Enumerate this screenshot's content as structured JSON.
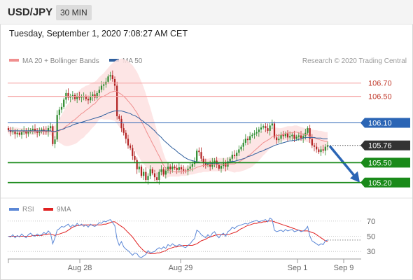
{
  "header": {
    "pair": "USD/JPY",
    "timeframe": "30 MIN"
  },
  "datetime": "Tuesday, September 1, 2020 7:08:27 AM CET",
  "legend": {
    "ma20": "MA 20 + Bollinger Bands",
    "ma50": "MA 50",
    "credit": "Research © 2020 Trading Central",
    "rsi": "RSI",
    "ma9": "9MA"
  },
  "colors": {
    "ma20": "#f08f8f",
    "ma50": "#2f5f9e",
    "band": "#fde0e0",
    "candle_up": "#2e8b2e",
    "candle_down": "#b22222",
    "resistance": "#f5a3a3",
    "pivot": "#2b65b5",
    "support": "#1a8a1a",
    "current": "#333333",
    "rsi": "#5b87d6",
    "rsi_ma": "#e02020"
  },
  "chart_data": [
    {
      "type": "candlestick",
      "title": "USD/JPY",
      "x_labels": [
        "Aug 28",
        "Aug 29",
        "Sep 1",
        "Sep 9"
      ],
      "ylim": [
        105.05,
        106.95
      ],
      "levels": [
        {
          "value": 106.7,
          "label": "106.70",
          "kind": "resistance"
        },
        {
          "value": 106.5,
          "label": "106.50",
          "kind": "resistance"
        },
        {
          "value": 106.1,
          "label": "106.10",
          "kind": "pivot"
        },
        {
          "value": 105.76,
          "label": "105.76",
          "kind": "current"
        },
        {
          "value": 105.5,
          "label": "105.50",
          "kind": "support"
        },
        {
          "value": 105.2,
          "label": "105.20",
          "kind": "support"
        }
      ],
      "close": [
        105.99,
        105.96,
        105.97,
        105.93,
        105.95,
        105.92,
        105.96,
        105.98,
        105.94,
        105.97,
        105.99,
        106.01,
        105.98,
        105.95,
        105.97,
        106.0,
        105.98,
        105.96,
        106.02,
        106.05,
        105.78,
        105.85,
        106.22,
        106.3,
        106.34,
        106.45,
        106.55,
        106.48,
        106.5,
        106.52,
        106.46,
        106.5,
        106.48,
        106.49,
        106.5,
        106.46,
        106.44,
        106.5,
        106.53,
        106.48,
        106.55,
        106.6,
        106.66,
        106.68,
        106.72,
        106.8,
        106.82,
        106.76,
        106.66,
        106.2,
        106.16,
        106.02,
        105.95,
        105.86,
        105.76,
        105.72,
        105.6,
        105.54,
        105.4,
        105.44,
        105.3,
        105.36,
        105.24,
        105.3,
        105.4,
        105.34,
        105.28,
        105.24,
        105.36,
        105.4,
        105.32,
        105.38,
        105.44,
        105.4,
        105.44,
        105.42,
        105.39,
        105.43,
        105.4,
        105.38,
        105.37,
        105.41,
        105.44,
        105.48,
        105.52,
        105.68,
        105.66,
        105.56,
        105.5,
        105.46,
        105.48,
        105.44,
        105.5,
        105.53,
        105.47,
        105.41,
        105.45,
        105.5,
        105.44,
        105.52,
        105.56,
        105.62,
        105.6,
        105.65,
        105.7,
        105.74,
        105.8,
        105.86,
        105.84,
        105.9,
        105.92,
        105.94,
        105.96,
        106.0,
        106.03,
        106.05,
        106.02,
        105.98,
        106.06,
        106.09,
        105.88,
        105.84,
        105.86,
        105.92,
        105.9,
        105.94,
        105.88,
        105.9,
        105.92,
        105.86,
        105.89,
        105.91,
        105.87,
        105.9,
        105.95,
        106.02,
        105.86,
        105.76,
        105.74,
        105.7,
        105.66,
        105.7,
        105.68,
        105.74,
        105.76
      ],
      "ma20": [
        105.98,
        105.98,
        105.98,
        105.98,
        105.98,
        105.97,
        105.97,
        105.97,
        105.97,
        105.97,
        105.97,
        105.97,
        105.97,
        105.97,
        105.97,
        105.97,
        105.97,
        105.97,
        105.97,
        105.97,
        105.96,
        105.96,
        105.97,
        105.98,
        106.0,
        106.02,
        106.05,
        106.07,
        106.1,
        106.13,
        106.15,
        106.18,
        106.21,
        106.24,
        106.26,
        106.29,
        106.31,
        106.34,
        106.37,
        106.39,
        106.43,
        106.47,
        106.49,
        106.5,
        106.52,
        106.54,
        106.56,
        106.57,
        106.58,
        106.57,
        106.55,
        106.53,
        106.5,
        106.47,
        106.43,
        106.39,
        106.35,
        106.3,
        106.25,
        106.19,
        106.12,
        106.06,
        105.99,
        105.92,
        105.86,
        105.79,
        105.73,
        105.66,
        105.6,
        105.53,
        105.46,
        105.41,
        105.39,
        105.38,
        105.37,
        105.36,
        105.36,
        105.36,
        105.37,
        105.37,
        105.37,
        105.38,
        105.39,
        105.4,
        105.41,
        105.43,
        105.44,
        105.45,
        105.46,
        105.46,
        105.46,
        105.47,
        105.47,
        105.47,
        105.47,
        105.47,
        105.47,
        105.47,
        105.47,
        105.48,
        105.48,
        105.48,
        105.48,
        105.5,
        105.51,
        105.53,
        105.55,
        105.57,
        105.6,
        105.62,
        105.65,
        105.68,
        105.71,
        105.74,
        105.77,
        105.8,
        105.82,
        105.84,
        105.86,
        105.89,
        105.9,
        105.91,
        105.91,
        105.92,
        105.93,
        105.94,
        105.95,
        105.95,
        105.95,
        105.96,
        105.96,
        105.95,
        105.94,
        105.93,
        105.92,
        105.92,
        105.9,
        105.88,
        105.87,
        105.86,
        105.85,
        105.84,
        105.83,
        105.82,
        105.82
      ],
      "ma50": [
        105.98,
        105.98,
        105.98,
        105.98,
        105.98,
        105.98,
        105.98,
        105.98,
        105.98,
        105.98,
        105.98,
        105.98,
        105.98,
        105.98,
        105.98,
        105.98,
        105.98,
        105.98,
        105.98,
        105.98,
        105.97,
        105.97,
        105.98,
        105.99,
        106.0,
        106.01,
        106.03,
        106.04,
        106.05,
        106.07,
        106.08,
        106.09,
        106.1,
        106.11,
        106.12,
        106.13,
        106.14,
        106.15,
        106.16,
        106.17,
        106.18,
        106.19,
        106.2,
        106.22,
        106.23,
        106.25,
        106.26,
        106.27,
        106.28,
        106.28,
        106.28,
        106.28,
        106.27,
        106.26,
        106.25,
        106.24,
        106.22,
        106.21,
        106.19,
        106.17,
        106.14,
        106.12,
        106.09,
        106.07,
        106.04,
        106.01,
        105.98,
        105.94,
        105.91,
        105.88,
        105.84,
        105.81,
        105.78,
        105.75,
        105.72,
        105.7,
        105.67,
        105.64,
        105.62,
        105.59,
        105.57,
        105.55,
        105.54,
        105.53,
        105.52,
        105.51,
        105.51,
        105.5,
        105.5,
        105.49,
        105.49,
        105.49,
        105.49,
        105.49,
        105.49,
        105.49,
        105.5,
        105.5,
        105.5,
        105.51,
        105.51,
        105.52,
        105.52,
        105.53,
        105.54,
        105.55,
        105.56,
        105.57,
        105.59,
        105.6,
        105.61,
        105.63,
        105.64,
        105.66,
        105.67,
        105.68,
        105.7,
        105.71,
        105.73,
        105.74,
        105.76,
        105.77,
        105.78,
        105.79,
        105.8,
        105.81,
        105.82,
        105.83,
        105.83,
        105.84,
        105.84,
        105.85,
        105.86,
        105.87,
        105.88,
        105.88,
        105.88,
        105.88,
        105.88,
        105.87,
        105.87,
        105.87,
        105.86,
        105.86,
        105.86
      ],
      "band_width": [
        0.05,
        0.05,
        0.05,
        0.05,
        0.05,
        0.05,
        0.05,
        0.05,
        0.05,
        0.05,
        0.05,
        0.05,
        0.05,
        0.05,
        0.05,
        0.05,
        0.05,
        0.05,
        0.05,
        0.05,
        0.08,
        0.1,
        0.14,
        0.18,
        0.22,
        0.26,
        0.3,
        0.32,
        0.34,
        0.36,
        0.37,
        0.38,
        0.38,
        0.38,
        0.38,
        0.37,
        0.36,
        0.35,
        0.34,
        0.33,
        0.32,
        0.32,
        0.33,
        0.35,
        0.37,
        0.39,
        0.41,
        0.43,
        0.45,
        0.48,
        0.51,
        0.54,
        0.56,
        0.58,
        0.6,
        0.61,
        0.62,
        0.62,
        0.62,
        0.61,
        0.6,
        0.58,
        0.55,
        0.51,
        0.47,
        0.42,
        0.37,
        0.32,
        0.27,
        0.22,
        0.18,
        0.14,
        0.11,
        0.09,
        0.08,
        0.07,
        0.07,
        0.07,
        0.07,
        0.07,
        0.07,
        0.07,
        0.07,
        0.08,
        0.08,
        0.09,
        0.09,
        0.1,
        0.1,
        0.1,
        0.1,
        0.1,
        0.1,
        0.1,
        0.1,
        0.1,
        0.1,
        0.1,
        0.1,
        0.1,
        0.11,
        0.12,
        0.13,
        0.14,
        0.15,
        0.16,
        0.17,
        0.18,
        0.19,
        0.2,
        0.21,
        0.21,
        0.21,
        0.21,
        0.2,
        0.19,
        0.18,
        0.16,
        0.15,
        0.14,
        0.13,
        0.12,
        0.11,
        0.1,
        0.1,
        0.1,
        0.1,
        0.1,
        0.1,
        0.1,
        0.1,
        0.1,
        0.1,
        0.1,
        0.1,
        0.11,
        0.11,
        0.12,
        0.12,
        0.13,
        0.13,
        0.14,
        0.14,
        0.14,
        0.14
      ],
      "forecast_target": 105.2
    },
    {
      "type": "line",
      "title": "RSI",
      "ylim": [
        20,
        80
      ],
      "y_ticks": [
        70,
        50,
        30
      ],
      "series": [
        {
          "name": "RSI",
          "values": [
            50,
            49,
            52,
            48,
            51,
            49,
            53,
            50,
            48,
            52,
            54,
            51,
            50,
            53,
            51,
            52,
            55,
            53,
            57,
            54,
            40,
            48,
            58,
            60,
            63,
            62,
            64,
            66,
            62,
            65,
            63,
            67,
            64,
            66,
            63,
            65,
            62,
            66,
            64,
            63,
            65,
            68,
            67,
            70,
            69,
            71,
            72,
            68,
            64,
            46,
            38,
            43,
            36,
            33,
            31,
            28,
            25,
            28,
            27,
            23,
            22,
            24,
            26,
            31,
            28,
            29,
            30,
            33,
            35,
            33,
            36,
            34,
            39,
            37,
            40,
            38,
            37,
            39,
            38,
            36,
            35,
            38,
            40,
            44,
            47,
            58,
            56,
            52,
            50,
            48,
            52,
            49,
            54,
            56,
            51,
            48,
            52,
            54,
            50,
            56,
            58,
            62,
            60,
            63,
            64,
            65,
            66,
            67,
            66,
            68,
            69,
            70,
            71,
            69,
            70,
            71,
            72,
            69,
            74,
            72,
            58,
            56,
            57,
            58,
            56,
            59,
            57,
            58,
            59,
            56,
            57,
            58,
            56,
            57,
            59,
            63,
            50,
            44,
            42,
            40,
            38,
            40,
            39,
            44,
            45
          ]
        },
        {
          "name": "9MA",
          "values": [
            50,
            50,
            50,
            50,
            50,
            50,
            50,
            50,
            50,
            50,
            50,
            51,
            51,
            51,
            51,
            51,
            52,
            52,
            53,
            53,
            52,
            51,
            52,
            53,
            54,
            55,
            56,
            58,
            60,
            62,
            63,
            64,
            64,
            65,
            65,
            65,
            65,
            65,
            65,
            65,
            65,
            65,
            65,
            66,
            66,
            67,
            68,
            69,
            69,
            67,
            65,
            63,
            61,
            58,
            55,
            52,
            49,
            45,
            41,
            37,
            34,
            31,
            29,
            28,
            27,
            27,
            27,
            28,
            28,
            29,
            30,
            31,
            33,
            34,
            35,
            36,
            36,
            37,
            37,
            38,
            38,
            38,
            38,
            38,
            39,
            40,
            42,
            44,
            45,
            46,
            48,
            49,
            50,
            51,
            52,
            52,
            52,
            52,
            52,
            52,
            53,
            54,
            55,
            56,
            58,
            60,
            61,
            63,
            64,
            65,
            66,
            67,
            67,
            68,
            68,
            69,
            69,
            70,
            70,
            70,
            69,
            68,
            67,
            66,
            65,
            64,
            63,
            62,
            61,
            60,
            59,
            58,
            57,
            57,
            57,
            57,
            56,
            55,
            54,
            52,
            50,
            48,
            46,
            44,
            43
          ]
        }
      ]
    }
  ]
}
